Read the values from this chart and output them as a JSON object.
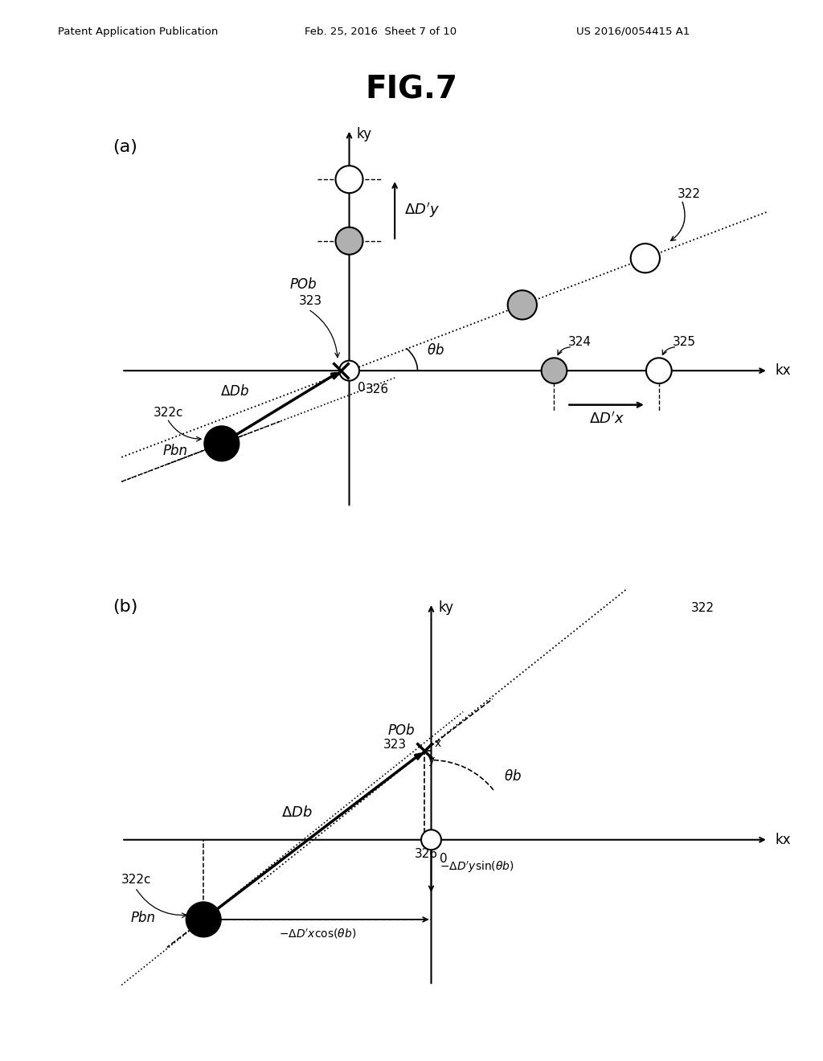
{
  "title": "FIG.7",
  "header_left": "Patent Application Publication",
  "header_mid": "Feb. 25, 2016  Sheet 7 of 10",
  "header_right": "US 2016/0054415 A1",
  "bg_color": "#ffffff",
  "label_a": "(a)",
  "label_b": "(b)",
  "gray_circle_color": "#b0b0b0"
}
